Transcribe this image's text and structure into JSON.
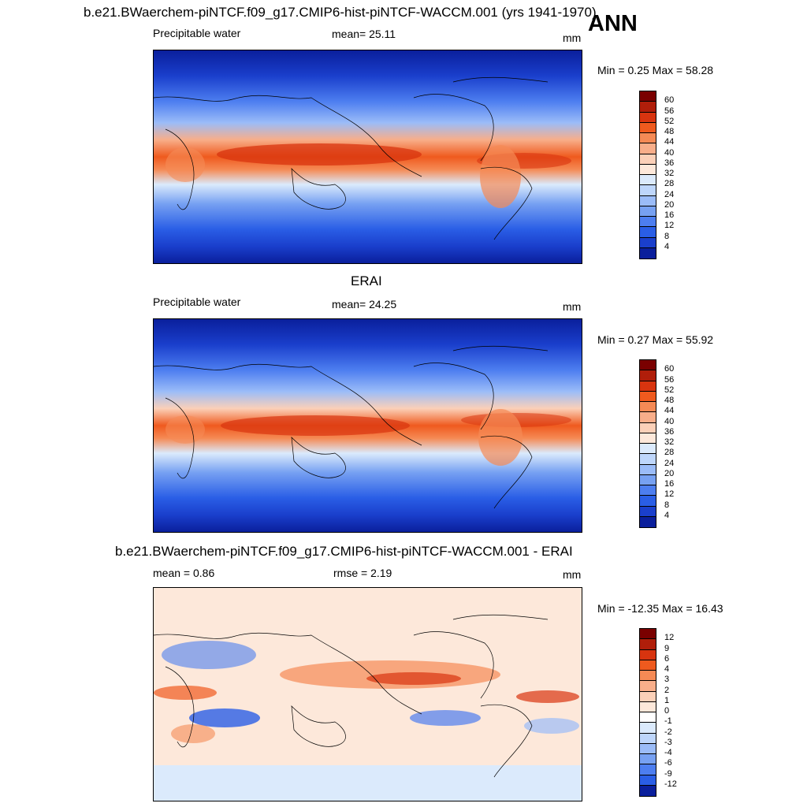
{
  "header": {
    "title": "b.e21.BWaerchem-piNTCF.f09_g17.CMIP6-hist-piNTCF-WACCM.001 (yrs 1941-1970)",
    "season": "ANN"
  },
  "panels": [
    {
      "id": "model",
      "title": "",
      "left_label": "Precipitable water",
      "center_label": "mean=  25.11",
      "right_label": "mm",
      "minmax": "Min =   0.25 Max =  58.28",
      "colorbar": {
        "colors": [
          "#7a0000",
          "#b01e0a",
          "#d8340f",
          "#ef5a1e",
          "#f58a55",
          "#f8ae8a",
          "#fbd0b8",
          "#fde8da",
          "#dbeafc",
          "#bed6fb",
          "#9bbcf8",
          "#77a1f2",
          "#4d7ef0",
          "#2a5ee6",
          "#1a3fcc",
          "#0a1f9c"
        ],
        "ticks": [
          "60",
          "56",
          "52",
          "48",
          "44",
          "40",
          "36",
          "32",
          "28",
          "24",
          "20",
          "16",
          "12",
          "8",
          "4"
        ]
      }
    },
    {
      "id": "obs",
      "title": "ERAI",
      "left_label": "Precipitable water",
      "center_label": "mean=  24.25",
      "right_label": "mm",
      "minmax": "Min =   0.27 Max =  55.92",
      "colorbar": {
        "colors": [
          "#7a0000",
          "#b01e0a",
          "#d8340f",
          "#ef5a1e",
          "#f58a55",
          "#f8ae8a",
          "#fbd0b8",
          "#fde8da",
          "#dbeafc",
          "#bed6fb",
          "#9bbcf8",
          "#77a1f2",
          "#4d7ef0",
          "#2a5ee6",
          "#1a3fcc",
          "#0a1f9c"
        ],
        "ticks": [
          "60",
          "56",
          "52",
          "48",
          "44",
          "40",
          "36",
          "32",
          "28",
          "24",
          "20",
          "16",
          "12",
          "8",
          "4"
        ]
      }
    },
    {
      "id": "diff",
      "title": "b.e21.BWaerchem-piNTCF.f09_g17.CMIP6-hist-piNTCF-WACCM.001 - ERAI",
      "left_label": "mean =   0.86",
      "center_label": "rmse =   2.19",
      "right_label": "mm",
      "minmax": "Min = -12.35 Max =  16.43",
      "colorbar": {
        "colors": [
          "#7a0000",
          "#b01e0a",
          "#d8340f",
          "#ef5a1e",
          "#f58a55",
          "#f8ae8a",
          "#fbd0b8",
          "#fde8da",
          "#ffffff",
          "#dbeafc",
          "#bed6fb",
          "#9bbcf8",
          "#77a1f2",
          "#4d7ef0",
          "#2a5ee6",
          "#0a1f9c"
        ],
        "ticks": [
          "12",
          "9",
          "6",
          "4",
          "3",
          "2",
          "1",
          "0",
          "-1",
          "-2",
          "-3",
          "-4",
          "-6",
          "-9",
          "-12"
        ]
      }
    }
  ]
}
